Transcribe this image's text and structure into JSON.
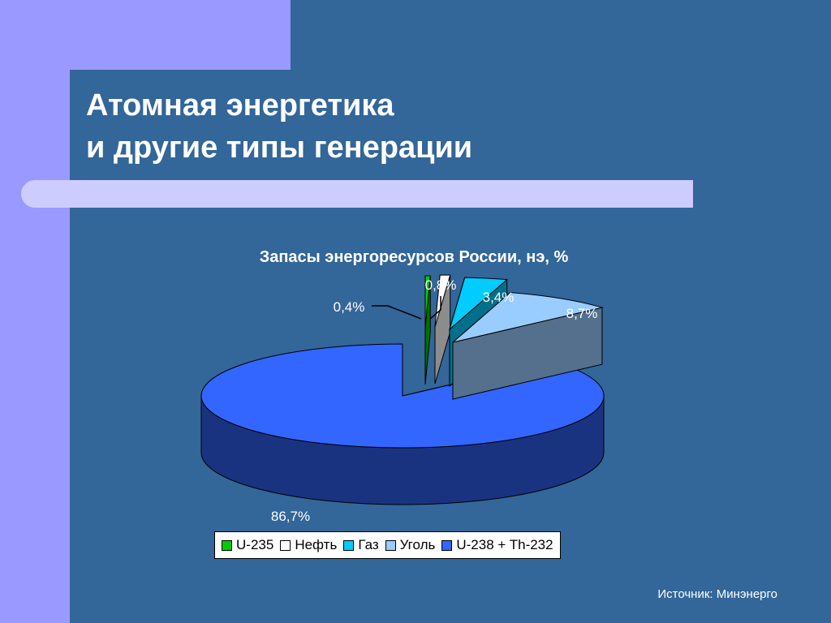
{
  "slide": {
    "title_line1": "Атомная энергетика",
    "title_line2": "и другие типы генерации",
    "source": "Источник: Минэнерго",
    "colors": {
      "background": "#336699",
      "accent": "#9999ff",
      "title_bar": "#ccccff"
    }
  },
  "chart_data": {
    "type": "pie",
    "rendering": "3d",
    "title": "Запасы энергоресурсов России, нэ, %",
    "categories": [
      "U-235",
      "Нефть",
      "Газ",
      "Уголь",
      "U-238 + Th-232"
    ],
    "values": [
      0.4,
      0.8,
      3.4,
      8.7,
      86.7
    ],
    "labels": [
      "0,4%",
      "0,8%",
      "3,4%",
      "8,7%",
      "86,7%"
    ],
    "colors": [
      "#00cc00",
      "#ffffff",
      "#00ccff",
      "#99ccff",
      "#3366ff"
    ],
    "exploded": [
      "U-235",
      "Нефть",
      "Газ",
      "Уголь"
    ],
    "legend_position": "bottom"
  }
}
